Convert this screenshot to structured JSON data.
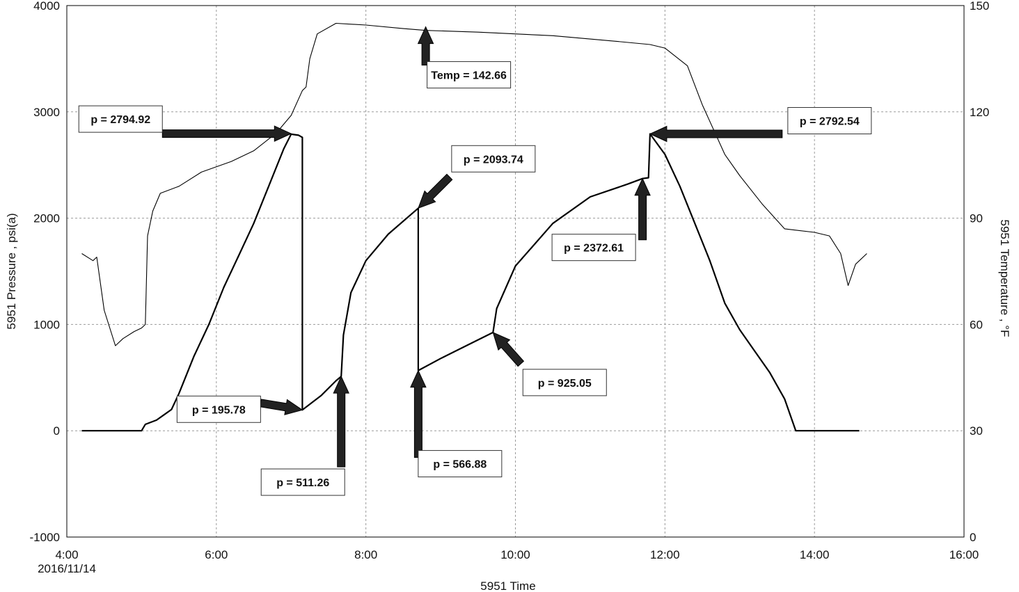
{
  "chart_data": {
    "type": "line",
    "xlabel": "5951 Time",
    "ylabel": "5951 Pressure , psi(a)",
    "y2label": "5951 Temperature , °F",
    "x_tick_labels": [
      "4:00",
      "6:00",
      "8:00",
      "10:00",
      "12:00",
      "14:00",
      "16:00"
    ],
    "x_first_tick_date": "2016/11/14",
    "x_range_hours": [
      4,
      16
    ],
    "ylim": [
      -1000,
      4000
    ],
    "y_ticks": [
      4000,
      3000,
      2000,
      1000,
      0,
      -1000
    ],
    "y2lim": [
      0,
      150
    ],
    "y2_ticks": [
      150,
      120,
      90,
      60,
      30,
      0
    ],
    "grid": true,
    "series": [
      {
        "axis": "left",
        "color": "#000000",
        "values": [
          [
            4.2,
            0
          ],
          [
            5.0,
            0
          ],
          [
            5.05,
            60
          ],
          [
            5.2,
            100
          ],
          [
            5.3,
            150
          ],
          [
            5.4,
            200
          ],
          [
            5.5,
            350
          ],
          [
            5.7,
            700
          ],
          [
            5.9,
            1000
          ],
          [
            6.1,
            1350
          ],
          [
            6.3,
            1650
          ],
          [
            6.5,
            1950
          ],
          [
            6.7,
            2300
          ],
          [
            6.9,
            2650
          ],
          [
            7.0,
            2790
          ],
          [
            7.1,
            2780
          ],
          [
            7.15,
            2760
          ],
          [
            7.15,
            200
          ],
          [
            7.15,
            195.78
          ],
          [
            7.4,
            330
          ],
          [
            7.6,
            470
          ],
          [
            7.67,
            511.26
          ],
          [
            7.7,
            900
          ],
          [
            7.8,
            1300
          ],
          [
            8.0,
            1600
          ],
          [
            8.3,
            1850
          ],
          [
            8.7,
            2093.74
          ],
          [
            8.7,
            566.88
          ],
          [
            9.0,
            680
          ],
          [
            9.4,
            820
          ],
          [
            9.7,
            925.05
          ],
          [
            9.75,
            1150
          ],
          [
            10.0,
            1550
          ],
          [
            10.5,
            1950
          ],
          [
            11.0,
            2200
          ],
          [
            11.5,
            2320
          ],
          [
            11.7,
            2372.61
          ],
          [
            11.78,
            2380
          ],
          [
            11.8,
            2792.54
          ],
          [
            12.0,
            2600
          ],
          [
            12.2,
            2300
          ],
          [
            12.4,
            1950
          ],
          [
            12.6,
            1600
          ],
          [
            12.8,
            1200
          ],
          [
            13.0,
            950
          ],
          [
            13.2,
            750
          ],
          [
            13.4,
            550
          ],
          [
            13.6,
            300
          ],
          [
            13.75,
            0
          ],
          [
            14.6,
            0
          ]
        ]
      },
      {
        "axis": "right",
        "color": "#000000",
        "values": [
          [
            4.2,
            80
          ],
          [
            4.35,
            78
          ],
          [
            4.4,
            79
          ],
          [
            4.5,
            64
          ],
          [
            4.65,
            54
          ],
          [
            4.75,
            56
          ],
          [
            4.9,
            58
          ],
          [
            5.0,
            59
          ],
          [
            5.05,
            60
          ],
          [
            5.08,
            85
          ],
          [
            5.15,
            92
          ],
          [
            5.25,
            97
          ],
          [
            5.5,
            99
          ],
          [
            5.8,
            103
          ],
          [
            6.2,
            106
          ],
          [
            6.5,
            109
          ],
          [
            6.8,
            114
          ],
          [
            7.0,
            119
          ],
          [
            7.15,
            126
          ],
          [
            7.2,
            127
          ],
          [
            7.25,
            135
          ],
          [
            7.35,
            142
          ],
          [
            7.6,
            145
          ],
          [
            8.0,
            144.5
          ],
          [
            8.5,
            143.5
          ],
          [
            8.8,
            143
          ],
          [
            9.5,
            142.5
          ],
          [
            10.5,
            141.5
          ],
          [
            11.3,
            140
          ],
          [
            11.8,
            139
          ],
          [
            12.0,
            138
          ],
          [
            12.3,
            133
          ],
          [
            12.5,
            122
          ],
          [
            12.8,
            108
          ],
          [
            13.0,
            102
          ],
          [
            13.3,
            94
          ],
          [
            13.6,
            87
          ],
          [
            14.0,
            86
          ],
          [
            14.2,
            85
          ],
          [
            14.35,
            80
          ],
          [
            14.45,
            71
          ],
          [
            14.55,
            77
          ],
          [
            14.7,
            80
          ]
        ]
      }
    ],
    "annotations": [
      {
        "label": "Temp = 142.66",
        "target": [
          8.8,
          3800
        ],
        "axis": "left"
      },
      {
        "label": "p = 2794.92",
        "target": [
          7.0,
          2794.92
        ],
        "axis": "left"
      },
      {
        "label": "p = 2792.54",
        "target": [
          11.8,
          2792.54
        ],
        "axis": "left"
      },
      {
        "label": "p = 2093.74",
        "target": [
          8.7,
          2093.74
        ],
        "axis": "left"
      },
      {
        "label": "p = 2372.61",
        "target": [
          11.7,
          2372.61
        ],
        "axis": "left"
      },
      {
        "label": "p = 925.05",
        "target": [
          9.7,
          925.05
        ],
        "axis": "left"
      },
      {
        "label": "p = 195.78",
        "target": [
          7.15,
          195.78
        ],
        "axis": "left"
      },
      {
        "label": "p = 511.26",
        "target": [
          7.67,
          511.26
        ],
        "axis": "left"
      },
      {
        "label": "p = 566.88",
        "target": [
          8.7,
          566.88
        ],
        "axis": "left"
      }
    ]
  }
}
